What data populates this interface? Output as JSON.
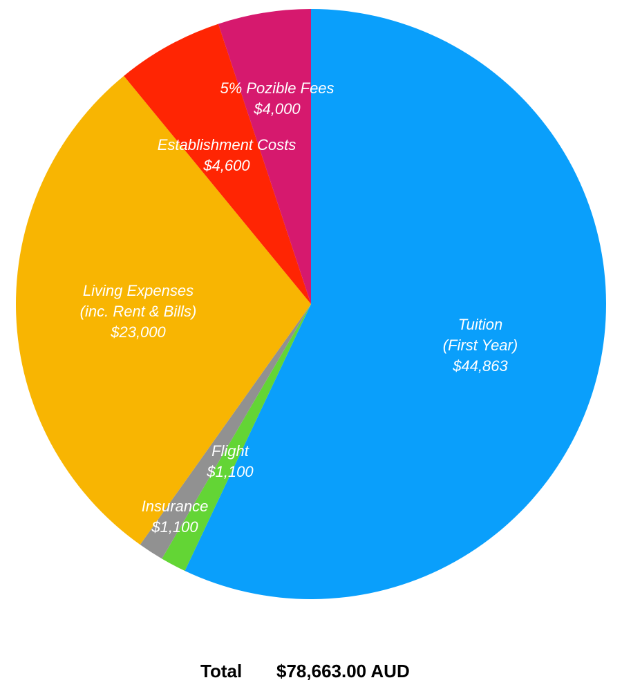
{
  "chart_data": {
    "type": "pie",
    "start": "top",
    "direction": "clockwise",
    "slices": [
      {
        "label": [
          "Tuition",
          "(First Year)"
        ],
        "value": 44863,
        "value_label": "$44,863",
        "color": "#0a9ffb"
      },
      {
        "label": [
          "Flight"
        ],
        "value": 1100,
        "value_label": "$1,100",
        "color": "#63d535"
      },
      {
        "label": [
          "Insurance"
        ],
        "value": 1100,
        "value_label": "$1,100",
        "color": "#919191"
      },
      {
        "label": [
          "Living Expenses",
          "(inc. Rent & Bills)"
        ],
        "value": 23000,
        "value_label": "$23,000",
        "color": "#f8b502"
      },
      {
        "label": [
          "Establishment Costs"
        ],
        "value": 4600,
        "value_label": "$4,600",
        "color": "#ff2503"
      },
      {
        "label": [
          "5% Pozible Fees"
        ],
        "value": 4000,
        "value_label": "$4,000",
        "color": "#d6196e"
      }
    ]
  },
  "total": {
    "label": "Total",
    "value": "$78,663.00 AUD"
  }
}
